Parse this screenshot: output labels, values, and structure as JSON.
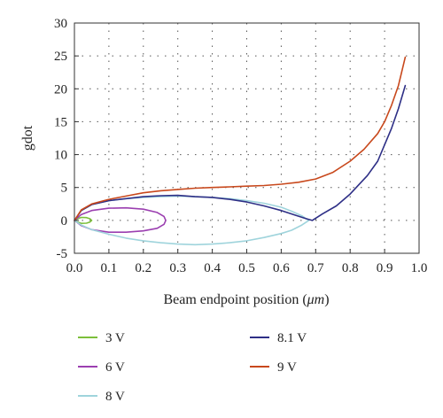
{
  "chart_data": {
    "type": "line",
    "title": "",
    "xlabel": "Beam endpoint position (",
    "xlabel_unit": "μm",
    "xlabel_close": ")",
    "ylabel": "gdot",
    "xlim": [
      0.0,
      1.0
    ],
    "ylim": [
      -5,
      30
    ],
    "x_ticks": [
      0.0,
      0.1,
      0.2,
      0.3,
      0.4,
      0.5,
      0.6,
      0.7,
      0.8,
      0.9,
      1.0
    ],
    "x_tick_labels": [
      "0.0",
      "0.1",
      "0.2",
      "0.3",
      "0.4",
      "0.5",
      "0.6",
      "0.7",
      "0.8",
      "0.9",
      "1.0"
    ],
    "y_ticks": [
      -5,
      0,
      5,
      10,
      15,
      20,
      25,
      30
    ],
    "y_tick_labels": [
      "-5",
      "0",
      "5",
      "10",
      "15",
      "20",
      "25",
      "30"
    ],
    "grid": true,
    "legend_placement": "bottom",
    "series": [
      {
        "name": "3 V",
        "color": "#7cbf3a",
        "x": [
          0.0,
          0.01,
          0.02,
          0.035,
          0.045,
          0.05,
          0.045,
          0.035,
          0.02,
          0.01,
          0.0
        ],
        "y": [
          0.0,
          0.28,
          0.45,
          0.42,
          0.25,
          0.0,
          -0.25,
          -0.42,
          -0.45,
          -0.28,
          0.0
        ]
      },
      {
        "name": "6 V",
        "color": "#9b3fb0",
        "x": [
          0.0,
          0.02,
          0.05,
          0.1,
          0.15,
          0.2,
          0.24,
          0.26,
          0.265,
          0.26,
          0.24,
          0.2,
          0.15,
          0.1,
          0.05,
          0.02,
          0.0
        ],
        "y": [
          0.0,
          0.9,
          1.5,
          1.85,
          1.9,
          1.7,
          1.2,
          0.6,
          0.0,
          -0.6,
          -1.2,
          -1.6,
          -1.8,
          -1.8,
          -1.4,
          -0.8,
          0.0
        ]
      },
      {
        "name": "8 V",
        "color": "#9fd4dc",
        "x": [
          0.0,
          0.02,
          0.05,
          0.1,
          0.15,
          0.2,
          0.25,
          0.3,
          0.35,
          0.4,
          0.45,
          0.5,
          0.55,
          0.6,
          0.63,
          0.66,
          0.68,
          0.66,
          0.63,
          0.6,
          0.55,
          0.5,
          0.45,
          0.4,
          0.35,
          0.3,
          0.25,
          0.2,
          0.15,
          0.1,
          0.05,
          0.02,
          0.0
        ],
        "y": [
          0.0,
          1.5,
          2.4,
          3.0,
          3.3,
          3.5,
          3.6,
          3.7,
          3.6,
          3.5,
          3.3,
          3.0,
          2.6,
          2.0,
          1.4,
          0.7,
          0.0,
          -0.7,
          -1.5,
          -2.0,
          -2.6,
          -3.1,
          -3.4,
          -3.6,
          -3.7,
          -3.6,
          -3.4,
          -3.1,
          -2.7,
          -2.1,
          -1.4,
          -0.7,
          0.0
        ]
      },
      {
        "name": "8.1 V",
        "color": "#2e2f86",
        "x": [
          0.0,
          0.02,
          0.05,
          0.1,
          0.15,
          0.2,
          0.25,
          0.3,
          0.35,
          0.4,
          0.45,
          0.5,
          0.55,
          0.6,
          0.64,
          0.67,
          0.69,
          0.72,
          0.76,
          0.8,
          0.85,
          0.88,
          0.9,
          0.92,
          0.94,
          0.96
        ],
        "y": [
          0.0,
          1.5,
          2.4,
          3.0,
          3.3,
          3.6,
          3.75,
          3.8,
          3.6,
          3.5,
          3.2,
          2.8,
          2.2,
          1.5,
          0.8,
          0.3,
          0.0,
          1.0,
          2.2,
          4.0,
          6.8,
          9.0,
          11.5,
          14.0,
          17.0,
          20.5
        ]
      },
      {
        "name": "9 V",
        "color": "#c8481c",
        "x": [
          0.0,
          0.02,
          0.05,
          0.1,
          0.15,
          0.2,
          0.25,
          0.3,
          0.35,
          0.4,
          0.45,
          0.5,
          0.55,
          0.6,
          0.65,
          0.7,
          0.75,
          0.8,
          0.84,
          0.88,
          0.9,
          0.92,
          0.94,
          0.96
        ],
        "y": [
          0.0,
          1.6,
          2.5,
          3.2,
          3.7,
          4.2,
          4.5,
          4.7,
          4.9,
          5.0,
          5.1,
          5.2,
          5.3,
          5.5,
          5.8,
          6.3,
          7.3,
          9.0,
          10.8,
          13.2,
          15.0,
          17.5,
          20.5,
          24.8
        ]
      }
    ]
  }
}
